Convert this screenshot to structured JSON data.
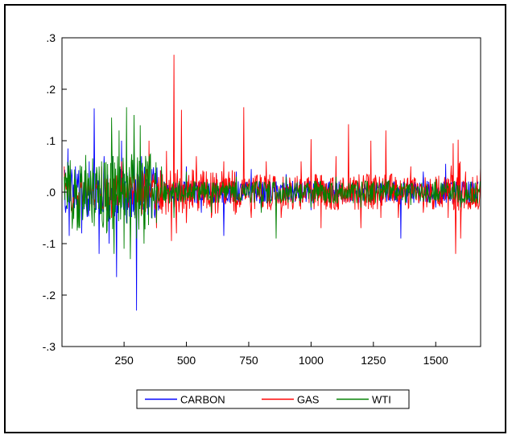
{
  "chart_data": {
    "type": "line",
    "x_ticks": [
      "250",
      "500",
      "750",
      "1000",
      "1250",
      "1500"
    ],
    "y_ticks": [
      ".3",
      ".2",
      ".1",
      ".0",
      "-.1",
      "-.2",
      "-.3"
    ],
    "xlim": [
      1,
      1680
    ],
    "ylim": [
      -0.3,
      0.3
    ],
    "x_tick_values": [
      250,
      500,
      750,
      1000,
      1250,
      1500
    ],
    "y_tick_values": [
      0.3,
      0.2,
      0.1,
      0.0,
      -0.1,
      -0.2,
      -0.3
    ],
    "grid": false,
    "legend_position": "bottom-center",
    "series": [
      {
        "name": "CARBON",
        "color": "#0000ff",
        "points": [
          [
            10,
            0.04
          ],
          [
            25,
            0.085
          ],
          [
            30,
            -0.085
          ],
          [
            55,
            0.05
          ],
          [
            80,
            -0.08
          ],
          [
            110,
            0.06
          ],
          [
            130,
            0.163
          ],
          [
            150,
            -0.12
          ],
          [
            170,
            0.07
          ],
          [
            190,
            -0.1
          ],
          [
            205,
            0.07
          ],
          [
            220,
            -0.165
          ],
          [
            240,
            0.1
          ],
          [
            260,
            -0.06
          ],
          [
            290,
            0.09
          ],
          [
            300,
            -0.23
          ],
          [
            320,
            0.07
          ],
          [
            360,
            -0.05
          ],
          [
            400,
            0.04
          ],
          [
            450,
            -0.04
          ],
          [
            500,
            0.05
          ],
          [
            560,
            -0.04
          ],
          [
            620,
            0.035
          ],
          [
            650,
            -0.085
          ],
          [
            700,
            0.04
          ],
          [
            760,
            0.045
          ],
          [
            800,
            -0.035
          ],
          [
            900,
            0.035
          ],
          [
            1000,
            -0.035
          ],
          [
            1100,
            0.03
          ],
          [
            1200,
            -0.04
          ],
          [
            1300,
            0.03
          ],
          [
            1360,
            -0.09
          ],
          [
            1400,
            0.03
          ],
          [
            1450,
            0.04
          ],
          [
            1500,
            -0.03
          ],
          [
            1540,
            0.055
          ],
          [
            1600,
            -0.03
          ],
          [
            1670,
            0.02
          ]
        ]
      },
      {
        "name": "GAS",
        "color": "#ff0000",
        "points": [
          [
            10,
            0.05
          ],
          [
            40,
            -0.04
          ],
          [
            80,
            0.04
          ],
          [
            120,
            -0.03
          ],
          [
            160,
            0.05
          ],
          [
            200,
            -0.05
          ],
          [
            240,
            0.06
          ],
          [
            300,
            -0.06
          ],
          [
            350,
            0.1
          ],
          [
            380,
            -0.07
          ],
          [
            420,
            0.08
          ],
          [
            440,
            -0.095
          ],
          [
            450,
            0.267
          ],
          [
            460,
            -0.08
          ],
          [
            480,
            0.16
          ],
          [
            500,
            -0.06
          ],
          [
            540,
            0.07
          ],
          [
            600,
            -0.05
          ],
          [
            650,
            0.06
          ],
          [
            700,
            -0.04
          ],
          [
            730,
            0.165
          ],
          [
            760,
            -0.05
          ],
          [
            820,
            0.06
          ],
          [
            880,
            -0.05
          ],
          [
            960,
            0.06
          ],
          [
            1000,
            0.103
          ],
          [
            1040,
            -0.07
          ],
          [
            1100,
            0.07
          ],
          [
            1150,
            0.132
          ],
          [
            1200,
            -0.07
          ],
          [
            1240,
            0.1
          ],
          [
            1280,
            -0.05
          ],
          [
            1300,
            0.12
          ],
          [
            1350,
            -0.05
          ],
          [
            1400,
            0.05
          ],
          [
            1450,
            -0.04
          ],
          [
            1500,
            0.03
          ],
          [
            1550,
            -0.05
          ],
          [
            1570,
            0.095
          ],
          [
            1580,
            -0.12
          ],
          [
            1590,
            0.102
          ],
          [
            1600,
            -0.09
          ],
          [
            1620,
            0.04
          ],
          [
            1660,
            -0.03
          ],
          [
            1680,
            0.05
          ]
        ]
      },
      {
        "name": "WTI",
        "color": "#008000",
        "points": [
          [
            10,
            0.03
          ],
          [
            40,
            -0.03
          ],
          [
            80,
            0.05
          ],
          [
            120,
            -0.04
          ],
          [
            160,
            0.06
          ],
          [
            180,
            -0.08
          ],
          [
            200,
            0.145
          ],
          [
            210,
            -0.12
          ],
          [
            230,
            0.12
          ],
          [
            250,
            -0.11
          ],
          [
            260,
            0.165
          ],
          [
            275,
            -0.13
          ],
          [
            290,
            0.15
          ],
          [
            300,
            -0.09
          ],
          [
            315,
            0.13
          ],
          [
            330,
            -0.1
          ],
          [
            350,
            0.07
          ],
          [
            380,
            -0.06
          ],
          [
            400,
            0.05
          ],
          [
            450,
            -0.05
          ],
          [
            500,
            0.04
          ],
          [
            600,
            -0.04
          ],
          [
            700,
            0.03
          ],
          [
            800,
            -0.04
          ],
          [
            860,
            -0.09
          ],
          [
            900,
            0.03
          ],
          [
            1000,
            -0.03
          ],
          [
            1100,
            0.03
          ],
          [
            1200,
            -0.03
          ],
          [
            1300,
            0.025
          ],
          [
            1400,
            -0.025
          ],
          [
            1500,
            0.025
          ],
          [
            1600,
            -0.03
          ],
          [
            1680,
            0.02
          ]
        ]
      }
    ]
  }
}
